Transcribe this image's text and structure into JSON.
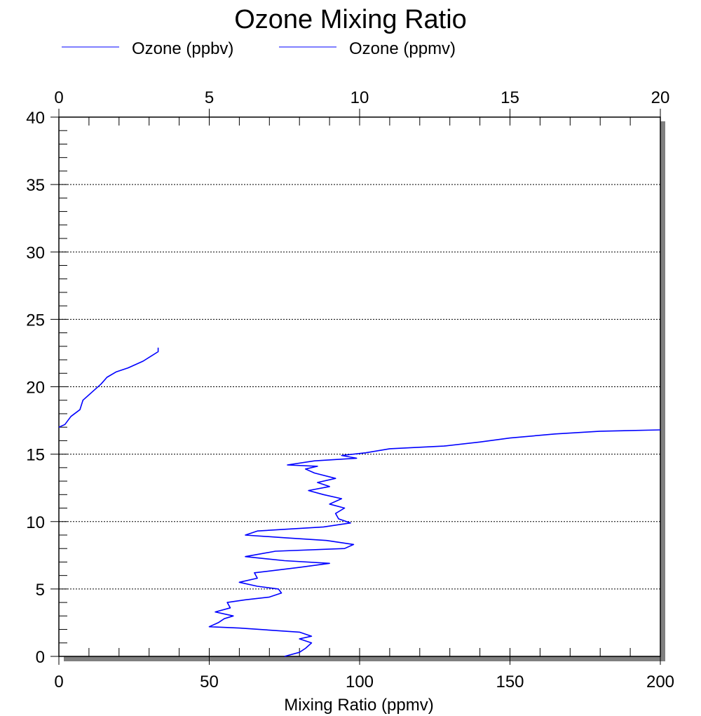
{
  "chart_data": {
    "type": "line",
    "title": "Ozone Mixing Ratio",
    "xlabel": "Mixing Ratio (ppmv)",
    "ylabel": "",
    "grid": true,
    "legend_position": "top",
    "xlim_bottom": [
      0,
      200
    ],
    "xticks_bottom": [
      "0",
      "50",
      "100",
      "150",
      "200"
    ],
    "xlim_top": [
      0,
      20
    ],
    "xticks_top": [
      "0",
      "5",
      "10",
      "15",
      "20"
    ],
    "ylim": [
      0,
      40
    ],
    "yticks": [
      "0",
      "5",
      "10",
      "15",
      "20",
      "25",
      "30",
      "35",
      "40"
    ],
    "series": [
      {
        "name": "Ozone (ppbv)",
        "axis": "bottom",
        "color": "#0000ff",
        "points": [
          [
            75,
            0.0
          ],
          [
            80,
            0.3
          ],
          [
            82,
            0.6
          ],
          [
            84,
            1.0
          ],
          [
            80,
            1.3
          ],
          [
            84,
            1.5
          ],
          [
            80,
            1.8
          ],
          [
            60,
            2.1
          ],
          [
            50,
            2.2
          ],
          [
            53,
            2.5
          ],
          [
            55,
            2.8
          ],
          [
            58,
            3.0
          ],
          [
            52,
            3.3
          ],
          [
            57,
            3.6
          ],
          [
            56,
            4.0
          ],
          [
            62,
            4.2
          ],
          [
            70,
            4.4
          ],
          [
            74,
            4.7
          ],
          [
            73,
            5.0
          ],
          [
            66,
            5.2
          ],
          [
            60,
            5.5
          ],
          [
            66,
            5.8
          ],
          [
            65,
            6.2
          ],
          [
            80,
            6.6
          ],
          [
            90,
            6.9
          ],
          [
            75,
            7.1
          ],
          [
            62,
            7.4
          ],
          [
            72,
            7.8
          ],
          [
            95,
            8.0
          ],
          [
            98,
            8.3
          ],
          [
            89,
            8.6
          ],
          [
            75,
            8.8
          ],
          [
            62,
            9.0
          ],
          [
            66,
            9.3
          ],
          [
            88,
            9.6
          ],
          [
            97,
            9.9
          ],
          [
            93,
            10.2
          ],
          [
            92,
            10.6
          ],
          [
            95,
            11.0
          ],
          [
            90,
            11.3
          ],
          [
            94,
            11.7
          ],
          [
            88,
            12.0
          ],
          [
            83,
            12.3
          ],
          [
            90,
            12.6
          ],
          [
            86,
            12.9
          ],
          [
            92,
            13.2
          ],
          [
            85,
            13.6
          ],
          [
            82,
            13.9
          ],
          [
            86,
            14.1
          ],
          [
            76,
            14.2
          ],
          [
            85,
            14.5
          ],
          [
            99,
            14.7
          ],
          [
            94,
            14.9
          ],
          [
            102,
            15.1
          ],
          [
            110,
            15.4
          ],
          [
            128,
            15.6
          ],
          [
            140,
            15.9
          ],
          [
            150,
            16.2
          ],
          [
            165,
            16.5
          ],
          [
            180,
            16.7
          ],
          [
            200,
            16.8
          ]
        ]
      },
      {
        "name": "Ozone (ppmv)",
        "axis": "top",
        "color": "#0000ff",
        "points": [
          [
            0,
            17.0
          ],
          [
            0.2,
            17.2
          ],
          [
            0.4,
            17.8
          ],
          [
            0.7,
            18.3
          ],
          [
            0.8,
            19.0
          ],
          [
            1.1,
            19.6
          ],
          [
            1.4,
            20.2
          ],
          [
            1.6,
            20.7
          ],
          [
            1.9,
            21.1
          ],
          [
            2.3,
            21.4
          ],
          [
            2.8,
            21.9
          ],
          [
            3.3,
            22.6
          ],
          [
            3.3,
            22.9
          ]
        ]
      }
    ]
  }
}
